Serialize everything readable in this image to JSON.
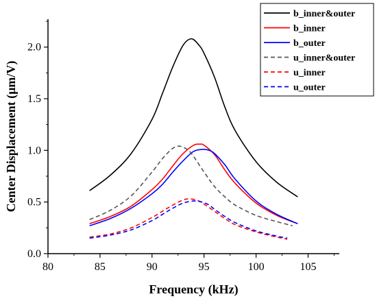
{
  "chart_data": {
    "type": "line",
    "title": "",
    "xlabel": "Frequency (kHz)",
    "ylabel": "Center Displacement (μm/V)",
    "xlim": [
      80,
      108
    ],
    "ylim": [
      0.0,
      2.27
    ],
    "xticks": [
      80,
      85,
      90,
      95,
      100,
      105
    ],
    "yticks": [
      0.0,
      0.5,
      1.0,
      1.5,
      2.0
    ],
    "xtick_labels": [
      "80",
      "85",
      "90",
      "95",
      "100",
      "105"
    ],
    "ytick_labels": [
      "0.0",
      "0.5",
      "1.0",
      "1.5",
      "2.0"
    ],
    "grid": false,
    "legend_position": "top-right",
    "series": [
      {
        "name": "b_inner&outer",
        "color": "#000000",
        "dash": "solid",
        "x": [
          84,
          86,
          88,
          90,
          91,
          92,
          93,
          93.8,
          94.5,
          95,
          96,
          97,
          98,
          100,
          102,
          104
        ],
        "y": [
          0.61,
          0.76,
          0.97,
          1.3,
          1.55,
          1.81,
          2.02,
          2.08,
          2.02,
          1.94,
          1.71,
          1.42,
          1.19,
          0.89,
          0.69,
          0.55
        ]
      },
      {
        "name": "b_inner",
        "color": "#ff0000",
        "dash": "solid",
        "x": [
          84,
          86,
          88,
          90,
          91,
          92,
          93,
          94,
          94.6,
          95,
          96,
          97,
          98,
          100,
          102,
          104
        ],
        "y": [
          0.29,
          0.36,
          0.46,
          0.62,
          0.72,
          0.85,
          0.97,
          1.05,
          1.06,
          1.05,
          0.96,
          0.81,
          0.68,
          0.49,
          0.37,
          0.29
        ]
      },
      {
        "name": "b_outer",
        "color": "#0000ff",
        "dash": "solid",
        "x": [
          84,
          86,
          88,
          90,
          91,
          92,
          93,
          94,
          94.9,
          95.5,
          96,
          97,
          98,
          100,
          102,
          104
        ],
        "y": [
          0.27,
          0.34,
          0.44,
          0.58,
          0.67,
          0.79,
          0.9,
          0.99,
          1.01,
          1.0,
          0.97,
          0.86,
          0.72,
          0.51,
          0.38,
          0.29
        ]
      },
      {
        "name": "u_inner&outer",
        "color": "#555555",
        "dash": "dashed",
        "x": [
          84,
          86,
          88,
          90,
          91,
          92,
          92.7,
          93.5,
          94,
          95,
          96,
          97,
          98,
          100,
          102,
          103.5
        ],
        "y": [
          0.33,
          0.42,
          0.56,
          0.79,
          0.92,
          1.02,
          1.04,
          1.0,
          0.94,
          0.79,
          0.65,
          0.55,
          0.47,
          0.37,
          0.31,
          0.27
        ]
      },
      {
        "name": "u_inner",
        "color": "#ff0000",
        "dash": "dashed",
        "x": [
          84,
          86,
          88,
          90,
          91,
          92,
          93,
          93.7,
          94.5,
          95,
          96,
          97,
          98,
          100,
          102,
          103
        ],
        "y": [
          0.16,
          0.19,
          0.25,
          0.35,
          0.41,
          0.47,
          0.52,
          0.53,
          0.51,
          0.48,
          0.41,
          0.34,
          0.28,
          0.21,
          0.16,
          0.14
        ]
      },
      {
        "name": "u_outer",
        "color": "#0000ff",
        "dash": "dashed",
        "x": [
          84,
          86,
          88,
          90,
          91,
          92,
          93,
          94,
          94.8,
          95.5,
          96,
          97,
          98,
          100,
          102,
          103
        ],
        "y": [
          0.15,
          0.18,
          0.23,
          0.32,
          0.38,
          0.44,
          0.49,
          0.51,
          0.5,
          0.47,
          0.43,
          0.36,
          0.3,
          0.22,
          0.17,
          0.15
        ]
      }
    ]
  }
}
